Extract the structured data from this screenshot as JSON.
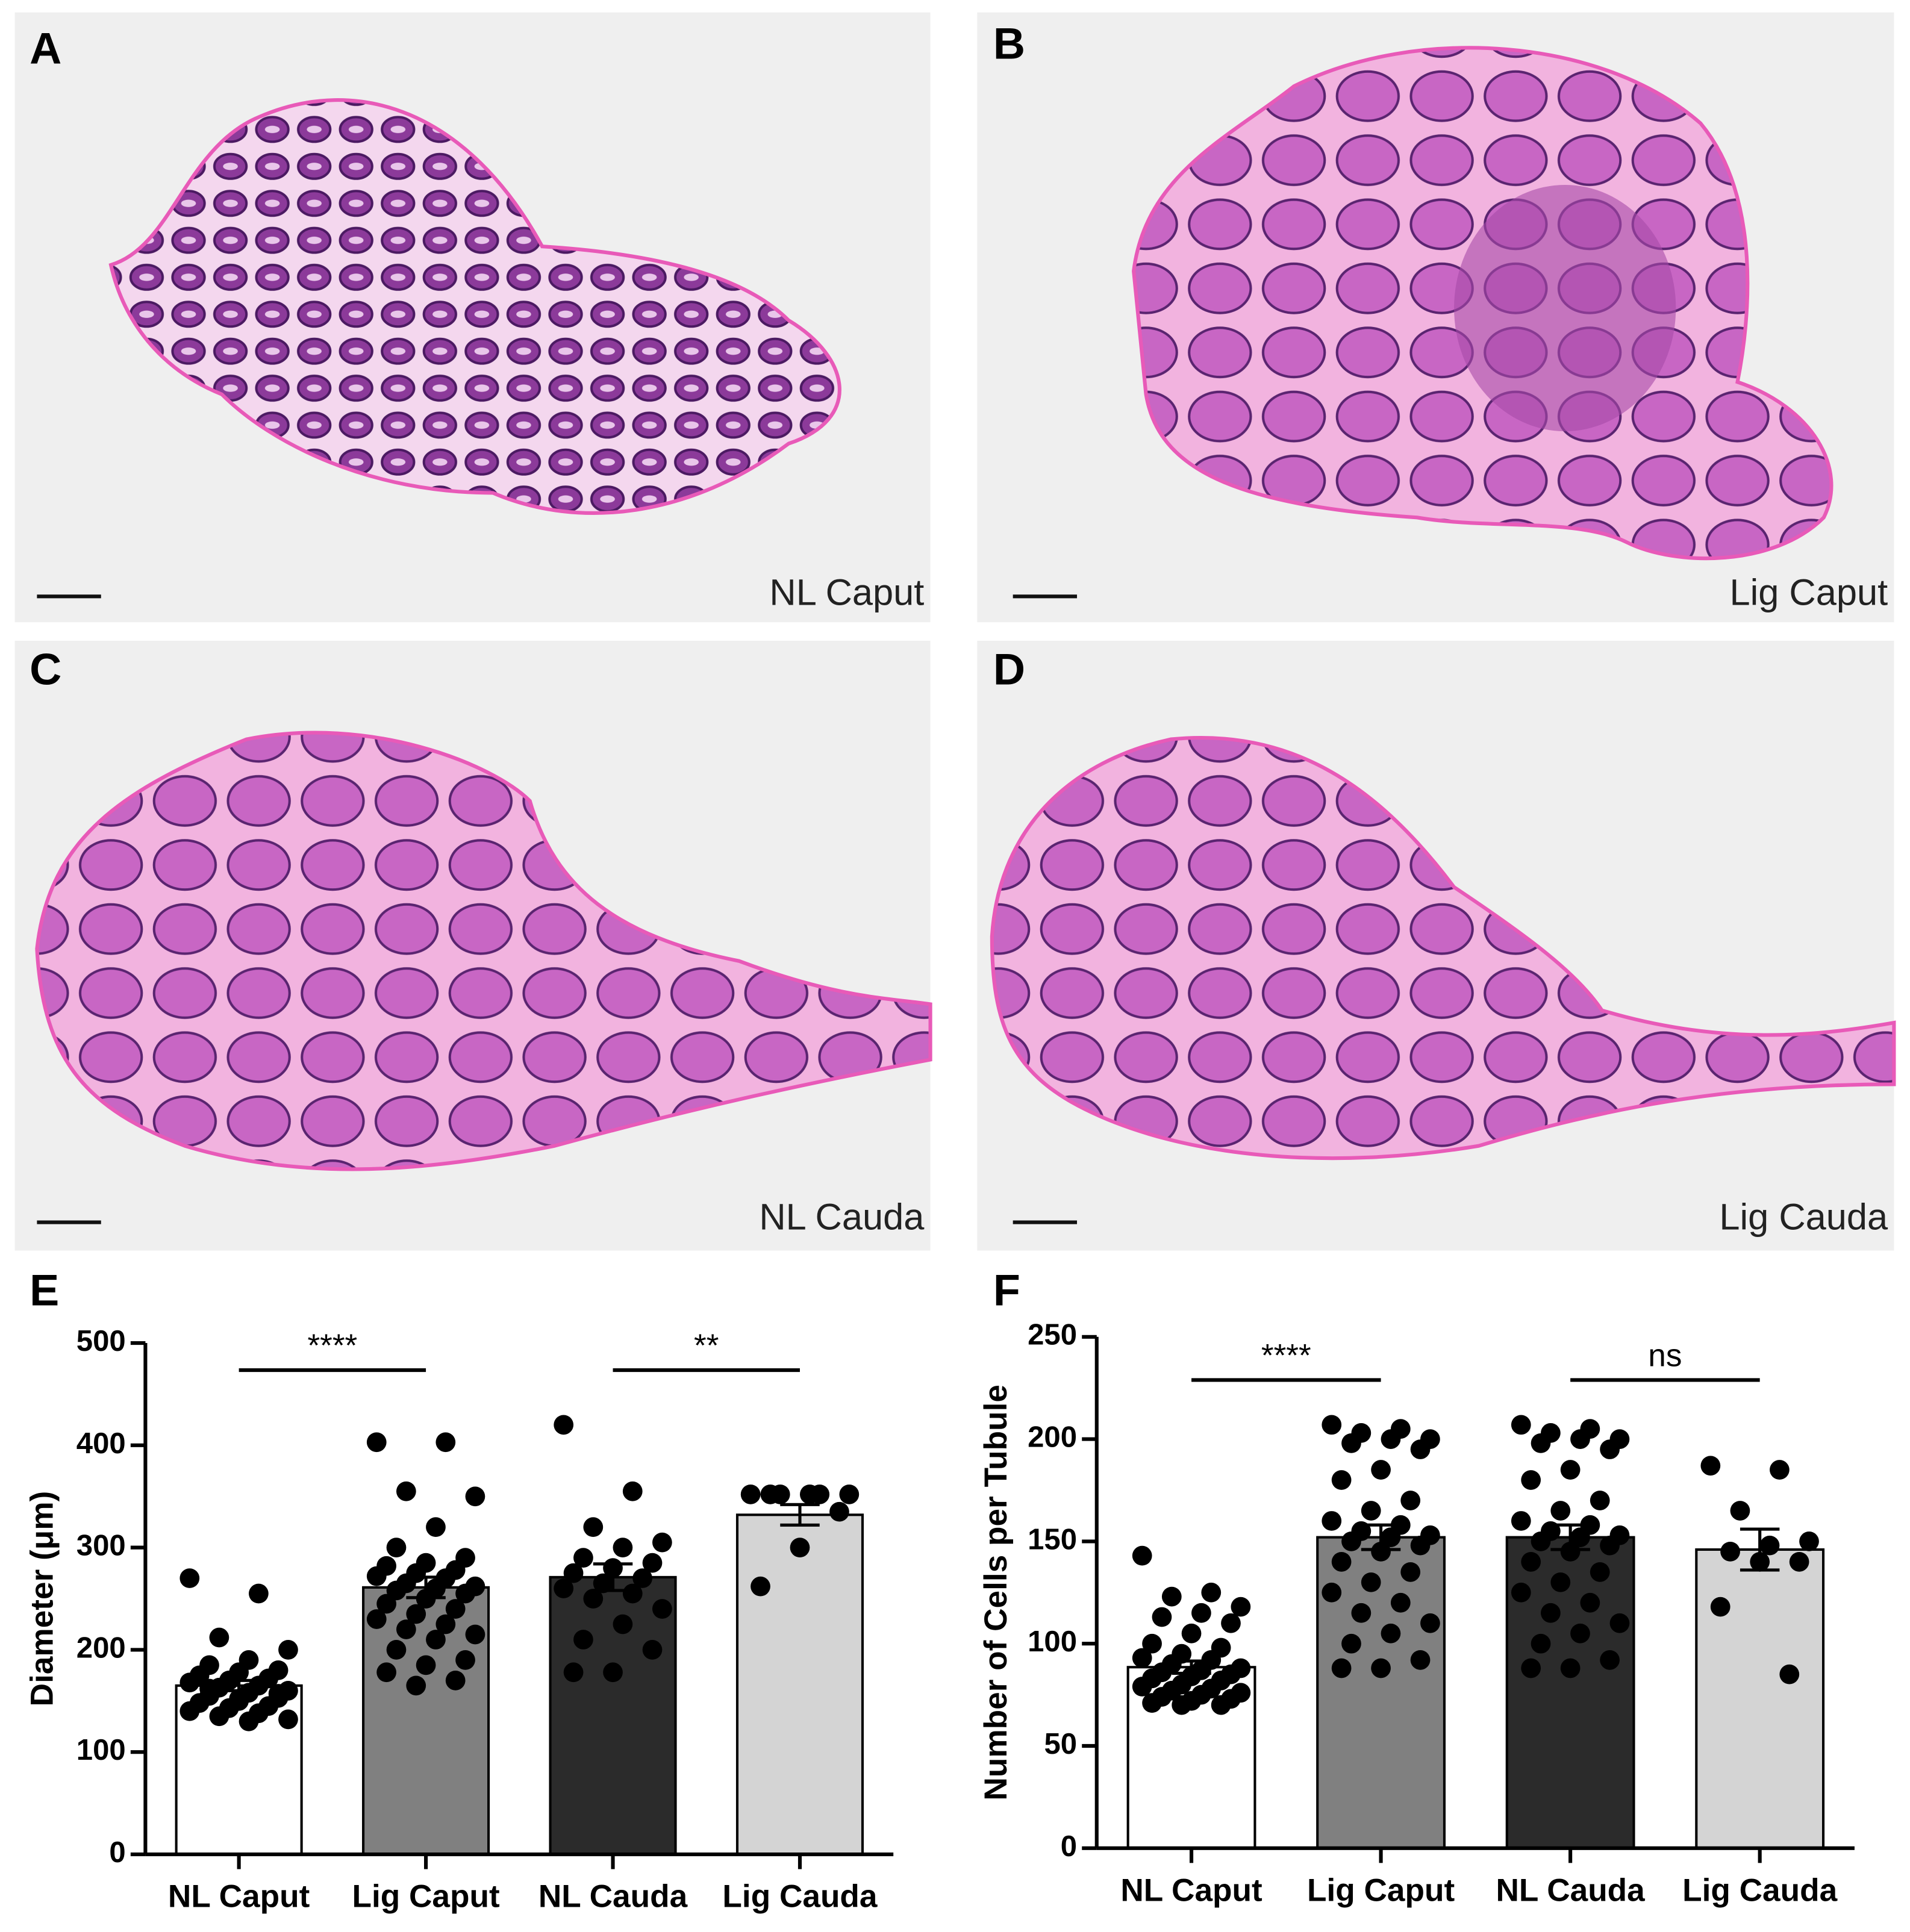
{
  "panels": [
    {
      "letter": "A",
      "caption": "NL Caput"
    },
    {
      "letter": "B",
      "caption": "Lig Caput"
    },
    {
      "letter": "C",
      "caption": "NL Cauda"
    },
    {
      "letter": "D",
      "caption": "Lig Cauda"
    }
  ],
  "chart_data": [
    {
      "type": "bar",
      "label": "E",
      "ylabel": "Diameter (μm)",
      "categories": [
        "NL Caput",
        "Lig Caput",
        "NL Cauda",
        "Lig Cauda"
      ],
      "values": [
        165,
        261,
        271,
        332
      ],
      "errors": [
        5,
        10,
        13,
        10
      ],
      "colors": [
        "#ffffff",
        "#808080",
        "#2b2b2b",
        "#d4d4d4"
      ],
      "points": [
        [
          270,
          255,
          212,
          200,
          190,
          185,
          180,
          178,
          175,
          172,
          170,
          168,
          165,
          163,
          160,
          158,
          155,
          153,
          150,
          148,
          145,
          143,
          140,
          138,
          135,
          132,
          130,
          162,
          157,
          152
        ],
        [
          403,
          403,
          355,
          350,
          320,
          300,
          290,
          285,
          282,
          278,
          275,
          272,
          270,
          265,
          262,
          260,
          258,
          255,
          250,
          245,
          240,
          235,
          230,
          225,
          220,
          215,
          210,
          200,
          190,
          185,
          178,
          170,
          165
        ],
        [
          420,
          355,
          320,
          305,
          300,
          290,
          285,
          280,
          275,
          270,
          265,
          260,
          255,
          250,
          240,
          225,
          210,
          200,
          178,
          178
        ],
        [
          352,
          352,
          352,
          352,
          352,
          352,
          335,
          300,
          262
        ]
      ],
      "ylim": [
        0,
        500
      ],
      "yticks": [
        0,
        100,
        200,
        300,
        400,
        500
      ],
      "comparisons": [
        {
          "label": "****",
          "between": [
            "NL Caput",
            "Lig Caput"
          ]
        },
        {
          "label": "**",
          "between": [
            "NL Cauda",
            "Lig Cauda"
          ]
        }
      ]
    },
    {
      "type": "bar",
      "label": "F",
      "ylabel": "Number of  Cells per  Tubule",
      "categories": [
        "NL Caput",
        "Lig Caput",
        "NL Cauda",
        "Lig Cauda"
      ],
      "values": [
        88.5,
        152,
        152,
        146
      ],
      "errors": [
        3,
        6,
        6,
        10
      ],
      "colors": [
        "#ffffff",
        "#808080",
        "#2b2b2b",
        "#d4d4d4"
      ],
      "points": [
        [
          143,
          125,
          123,
          118,
          115,
          113,
          110,
          105,
          100,
          98,
          95,
          93,
          92,
          90,
          88,
          87,
          86,
          85,
          84,
          83,
          82,
          80,
          79,
          78,
          77,
          76,
          75,
          74,
          73,
          72,
          71,
          70,
          70
        ],
        [
          207,
          205,
          203,
          200,
          200,
          198,
          195,
          185,
          180,
          170,
          165,
          160,
          158,
          155,
          153,
          152,
          150,
          148,
          145,
          140,
          135,
          130,
          125,
          120,
          115,
          110,
          105,
          100,
          92,
          88,
          88
        ],
        [
          207,
          205,
          203,
          200,
          200,
          198,
          195,
          185,
          180,
          170,
          165,
          160,
          158,
          155,
          153,
          152,
          150,
          148,
          145,
          140,
          135,
          130,
          125,
          120,
          115,
          110,
          105,
          100,
          92,
          88,
          88
        ],
        [
          187,
          185,
          165,
          150,
          148,
          145,
          140,
          140,
          118,
          85
        ]
      ],
      "ylim": [
        0,
        250
      ],
      "yticks": [
        0,
        50,
        100,
        150,
        200,
        250
      ],
      "comparisons": [
        {
          "label": "****",
          "between": [
            "NL Caput",
            "Lig Caput"
          ]
        },
        {
          "label": "ns",
          "between": [
            "NL Cauda",
            "Lig Cauda"
          ]
        }
      ]
    }
  ]
}
